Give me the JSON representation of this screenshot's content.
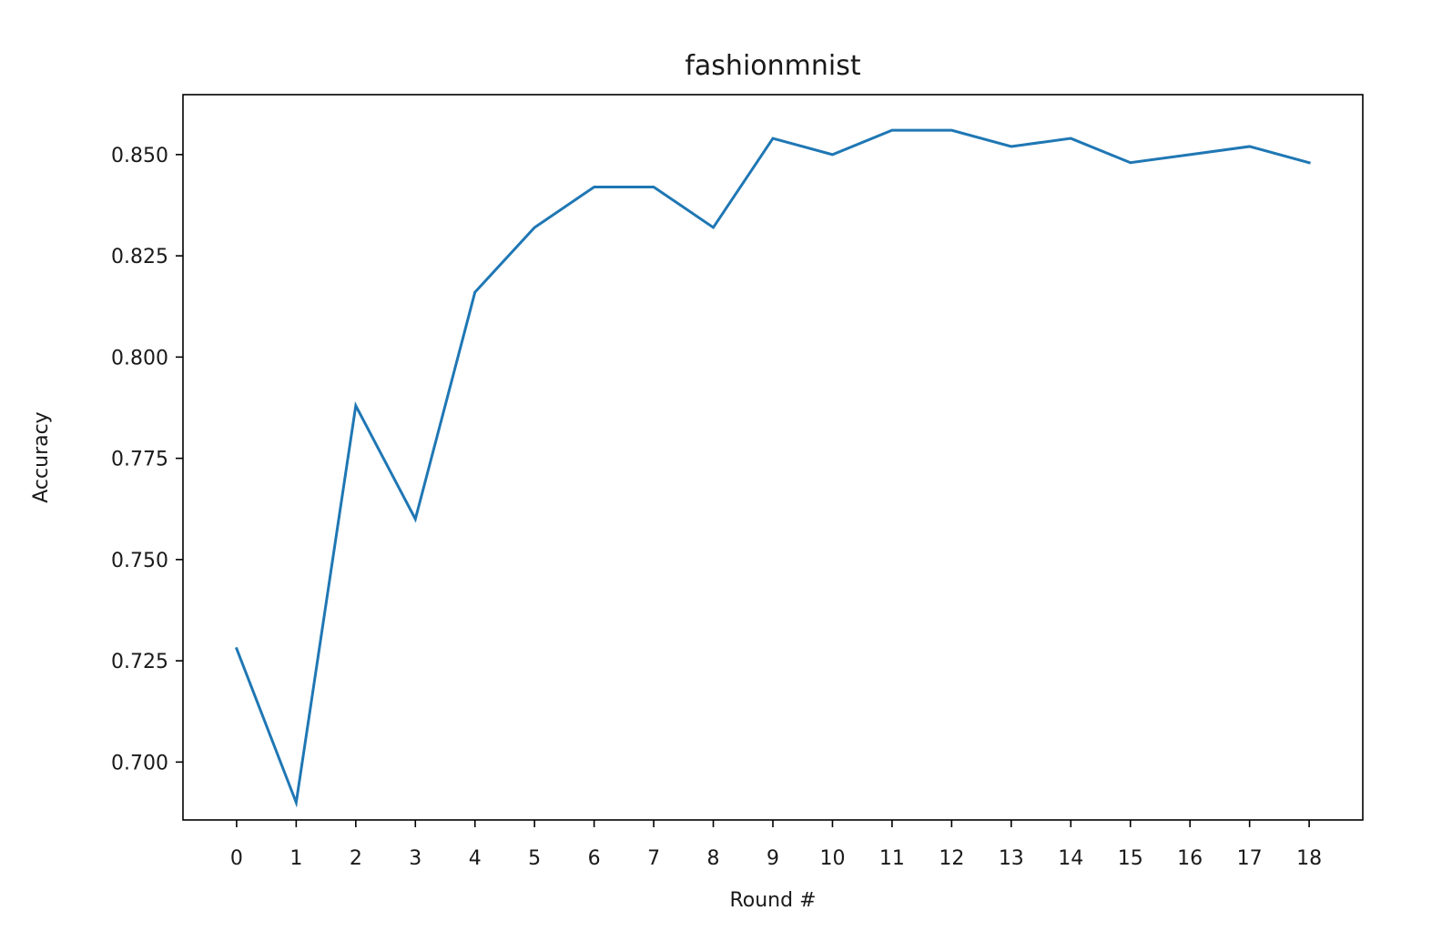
{
  "chart_data": {
    "type": "line",
    "title": "fashionmnist",
    "xlabel": "Round #",
    "ylabel": "Accuracy",
    "x": [
      0,
      1,
      2,
      3,
      4,
      5,
      6,
      7,
      8,
      9,
      10,
      11,
      12,
      13,
      14,
      15,
      16,
      17,
      18
    ],
    "x_tick_labels": [
      "0",
      "1",
      "2",
      "3",
      "4",
      "5",
      "6",
      "7",
      "8",
      "9",
      "10",
      "11",
      "12",
      "13",
      "14",
      "15",
      "16",
      "17",
      "18"
    ],
    "series": [
      {
        "color": "#1f77b4",
        "values": [
          0.728,
          0.69,
          0.788,
          0.76,
          0.816,
          0.832,
          0.842,
          0.842,
          0.832,
          0.854,
          0.85,
          0.856,
          0.856,
          0.852,
          0.854,
          0.848,
          0.85,
          0.852,
          0.848
        ]
      }
    ],
    "y_ticks": [
      0.7,
      0.725,
      0.75,
      0.775,
      0.8,
      0.825,
      0.85
    ],
    "y_tick_labels": [
      "0.700",
      "0.725",
      "0.750",
      "0.775",
      "0.800",
      "0.825",
      "0.850"
    ],
    "xlim": [
      -0.9,
      18.9
    ],
    "ylim": [
      0.6857,
      0.8648
    ],
    "grid": false,
    "legend": "none"
  }
}
